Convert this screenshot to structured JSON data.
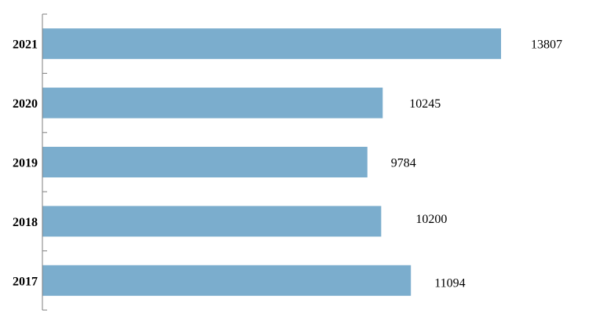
{
  "chart_data": {
    "type": "bar",
    "orientation": "horizontal",
    "categories": [
      "2021",
      "2020",
      "2019",
      "2018",
      "2017"
    ],
    "values": [
      13807,
      10245,
      9784,
      10200,
      11094
    ],
    "data_labels": [
      "13807",
      "10245",
      "9784",
      "10200",
      "11094"
    ],
    "xlim": [
      0,
      13807
    ],
    "grid": false,
    "legend": "none",
    "colors": {
      "bar": "#7BADCD",
      "axis": "#7F7F7F",
      "text": "#000000"
    }
  }
}
